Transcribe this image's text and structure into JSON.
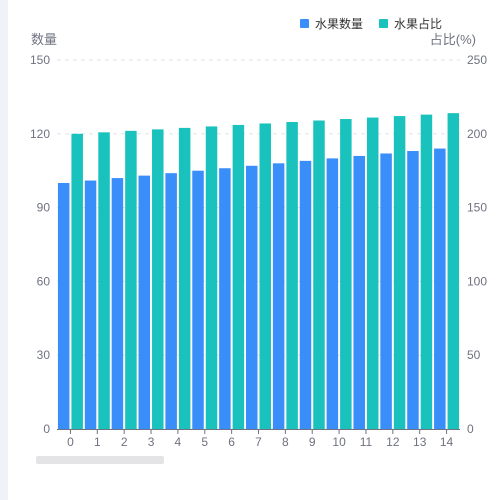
{
  "legend": {
    "items": [
      {
        "label": "水果数量",
        "color": "#3a8efa"
      },
      {
        "label": "水果占比",
        "color": "#19c2bd"
      }
    ]
  },
  "axes": {
    "left_title": "数量",
    "right_title": "占比(%)"
  },
  "chart_data": {
    "type": "bar",
    "categories": [
      "0",
      "1",
      "2",
      "3",
      "4",
      "5",
      "6",
      "7",
      "8",
      "9",
      "10",
      "11",
      "12",
      "13",
      "14"
    ],
    "series": [
      {
        "name": "水果数量",
        "axis": "left",
        "color": "#3a8efa",
        "values": [
          100,
          101,
          102,
          103,
          104,
          105,
          106,
          107,
          108,
          109,
          110,
          111,
          112,
          113,
          114
        ]
      },
      {
        "name": "水果占比",
        "axis": "right",
        "color": "#19c2bd",
        "values": [
          200,
          201,
          202,
          203,
          204,
          205,
          206,
          207,
          208,
          209,
          210,
          211,
          212,
          213,
          214
        ]
      }
    ],
    "y_left": {
      "title": "数量",
      "min": 0,
      "max": 150,
      "ticks": [
        0,
        30,
        60,
        90,
        120,
        150
      ]
    },
    "y_right": {
      "title": "占比(%)",
      "min": 0,
      "max": 250,
      "ticks": [
        0,
        50,
        100,
        150,
        200,
        250
      ]
    },
    "grid": true,
    "legend_position": "top-right"
  }
}
